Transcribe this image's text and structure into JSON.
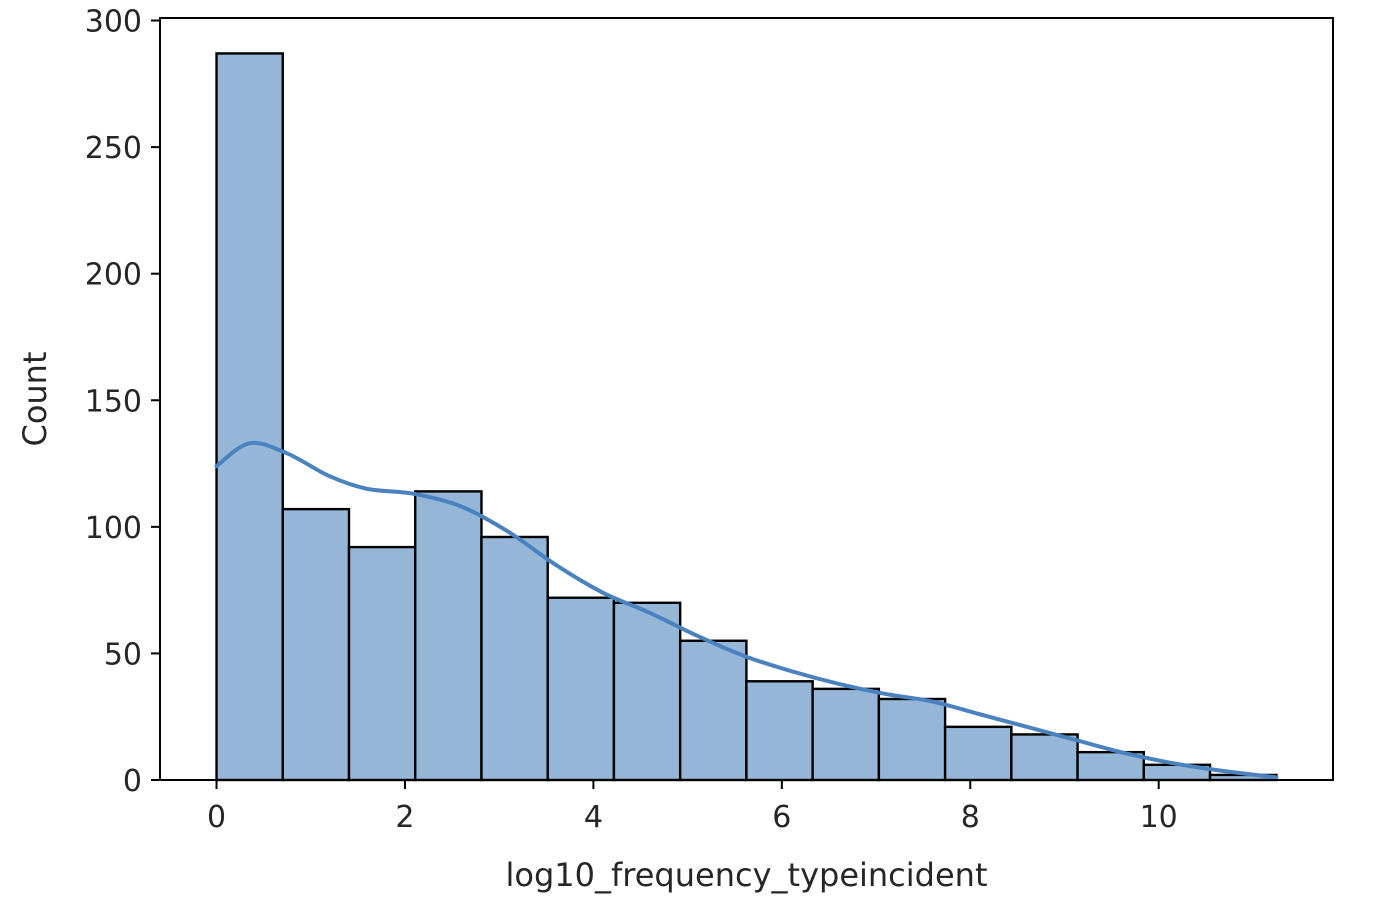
{
  "chart_data": {
    "type": "bar",
    "subtype": "histogram",
    "title": "",
    "xlabel": "log10_frequency_typeincident",
    "ylabel": "Count",
    "xlim": [
      -0.6,
      11.85
    ],
    "ylim": [
      0,
      301
    ],
    "x_ticks": [
      0,
      2,
      4,
      6,
      8,
      10
    ],
    "x_tick_labels": [
      "0",
      "2",
      "4",
      "6",
      "8",
      "10"
    ],
    "y_ticks": [
      0,
      50,
      100,
      150,
      200,
      250,
      300
    ],
    "y_tick_labels": [
      "0",
      "50",
      "100",
      "150",
      "200",
      "250",
      "300"
    ],
    "grid": false,
    "legend": "none",
    "bin_edges": [
      0.0,
      0.703,
      1.406,
      2.109,
      2.812,
      3.515,
      4.218,
      4.921,
      5.624,
      6.327,
      7.03,
      7.733,
      8.436,
      9.139,
      9.842,
      10.545,
      11.25
    ],
    "counts": [
      287,
      107,
      92,
      114,
      96,
      72,
      70,
      55,
      39,
      36,
      32,
      21,
      18,
      11,
      6,
      2
    ],
    "kde": {
      "x": [
        0.0,
        0.35,
        0.75,
        1.2,
        1.6,
        2.1,
        2.6,
        3.1,
        3.6,
        4.1,
        4.6,
        5.1,
        5.6,
        6.1,
        6.6,
        7.1,
        7.6,
        8.1,
        8.6,
        9.1,
        9.6,
        10.1,
        10.6,
        11.25
      ],
      "y": [
        124,
        133,
        129,
        120,
        115,
        113,
        108,
        98,
        85,
        74,
        66,
        57,
        49,
        43,
        38,
        34,
        31,
        26,
        21,
        16,
        11,
        7,
        4,
        1
      ]
    },
    "colors": {
      "bar_fill": "#95b6d6",
      "bar_edge": "#000000",
      "kde_line": "#4a81bf"
    }
  }
}
